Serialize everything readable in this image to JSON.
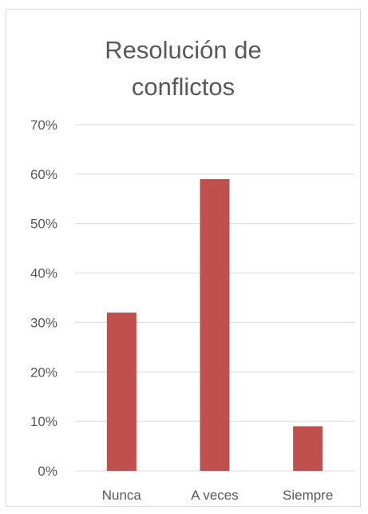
{
  "chart_data": {
    "type": "bar",
    "title_lines": [
      "Resolución de",
      "conflictos"
    ],
    "categories": [
      "Nunca",
      "A veces",
      "Siempre"
    ],
    "values": [
      0.32,
      0.59,
      0.09
    ],
    "ylim": [
      0,
      0.7
    ],
    "ytick_values": [
      0,
      0.1,
      0.2,
      0.3,
      0.4,
      0.5,
      0.6,
      0.7
    ],
    "yticks": [
      "0%",
      "10%",
      "20%",
      "30%",
      "40%",
      "50%",
      "60%",
      "70%"
    ],
    "xlabel": "",
    "ylabel": "",
    "grid": true,
    "legend": "none",
    "bar_color": "#c0504d",
    "grid_color": "#d9d9d9"
  }
}
